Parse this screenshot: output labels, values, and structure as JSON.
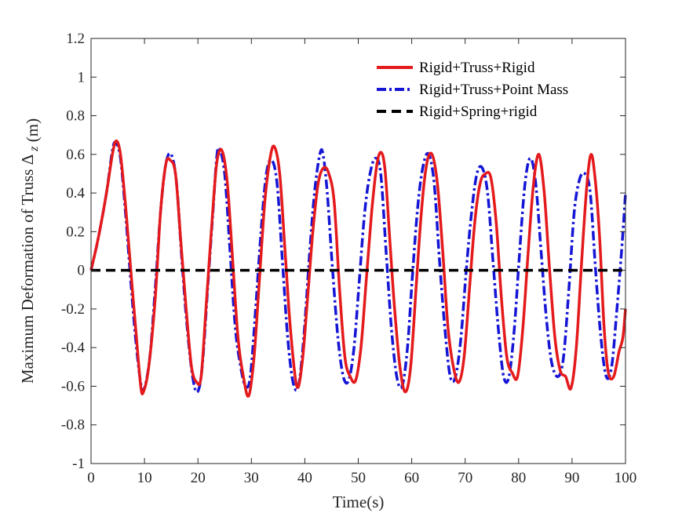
{
  "chart_data": {
    "type": "line",
    "title": "",
    "xlabel": "Time(s)",
    "ylabel": "Maximum Deformation of Truss",
    "ylabel_symbol": "Δ",
    "ylabel_subscript": "z",
    "ylabel_unit": "(m)",
    "xlim": [
      0,
      100
    ],
    "ylim": [
      -1,
      1.2
    ],
    "xticks": [
      0,
      10,
      20,
      30,
      40,
      50,
      60,
      70,
      80,
      90,
      100
    ],
    "yticks": [
      -1,
      -0.8,
      -0.6,
      -0.4,
      -0.2,
      0,
      0.2,
      0.4,
      0.6,
      0.8,
      1,
      1.2
    ],
    "xtick_labels": [
      "0",
      "10",
      "20",
      "30",
      "40",
      "50",
      "60",
      "70",
      "80",
      "90",
      "100"
    ],
    "ytick_labels": [
      "-1",
      "-0.8",
      "-0.6",
      "-0.4",
      "-0.2",
      "0",
      "0.2",
      "0.4",
      "0.6",
      "0.8",
      "1",
      "1.2"
    ],
    "grid": false,
    "legend_position": "top-right",
    "series": [
      {
        "name": "Rigid+Truss+Rigid",
        "color": "#e41a1c",
        "style": "solid",
        "points": [
          [
            0,
            0
          ],
          [
            1,
            0.12
          ],
          [
            2,
            0.26
          ],
          [
            3,
            0.42
          ],
          [
            4,
            0.6
          ],
          [
            4.7,
            0.67
          ],
          [
            5.5,
            0.6
          ],
          [
            6.5,
            0.32
          ],
          [
            7.5,
            -0.02
          ],
          [
            8.5,
            -0.35
          ],
          [
            9.3,
            -0.6
          ],
          [
            9.8,
            -0.63
          ],
          [
            10.8,
            -0.5
          ],
          [
            12,
            -0.15
          ],
          [
            13,
            0.3
          ],
          [
            14,
            0.55
          ],
          [
            14.8,
            0.57
          ],
          [
            15.8,
            0.5
          ],
          [
            16.8,
            0.15
          ],
          [
            17.8,
            -0.2
          ],
          [
            18.8,
            -0.5
          ],
          [
            19.8,
            -0.58
          ],
          [
            20.6,
            -0.55
          ],
          [
            21.5,
            -0.2
          ],
          [
            22.5,
            0.2
          ],
          [
            23.5,
            0.55
          ],
          [
            24.5,
            0.62
          ],
          [
            25.5,
            0.45
          ],
          [
            26.5,
            0.05
          ],
          [
            27.5,
            -0.35
          ],
          [
            28.5,
            -0.55
          ],
          [
            29.5,
            -0.65
          ],
          [
            30.5,
            -0.45
          ],
          [
            31.5,
            -0.05
          ],
          [
            32.5,
            0.35
          ],
          [
            33.5,
            0.58
          ],
          [
            34.3,
            0.64
          ],
          [
            35.3,
            0.5
          ],
          [
            36.3,
            0.1
          ],
          [
            37.3,
            -0.3
          ],
          [
            38.5,
            -0.6
          ],
          [
            39.5,
            -0.48
          ],
          [
            40.5,
            -0.15
          ],
          [
            41.5,
            0.2
          ],
          [
            42.5,
            0.45
          ],
          [
            43.5,
            0.53
          ],
          [
            44.5,
            0.5
          ],
          [
            45.5,
            0.35
          ],
          [
            46.5,
            -0.1
          ],
          [
            47.5,
            -0.45
          ],
          [
            48.5,
            -0.55
          ],
          [
            49.5,
            -0.57
          ],
          [
            50.5,
            -0.4
          ],
          [
            51.5,
            -0.05
          ],
          [
            52.5,
            0.3
          ],
          [
            53.5,
            0.55
          ],
          [
            54.3,
            0.61
          ],
          [
            55,
            0.52
          ],
          [
            55.8,
            0.2
          ],
          [
            56.8,
            -0.2
          ],
          [
            57.8,
            -0.5
          ],
          [
            58.8,
            -0.63
          ],
          [
            59.8,
            -0.5
          ],
          [
            60.8,
            -0.1
          ],
          [
            61.8,
            0.3
          ],
          [
            62.8,
            0.55
          ],
          [
            63.8,
            0.6
          ],
          [
            64.8,
            0.45
          ],
          [
            65.8,
            0.1
          ],
          [
            66.8,
            -0.3
          ],
          [
            67.8,
            -0.5
          ],
          [
            68.8,
            -0.58
          ],
          [
            69.8,
            -0.45
          ],
          [
            70.8,
            -0.1
          ],
          [
            71.8,
            0.25
          ],
          [
            72.8,
            0.45
          ],
          [
            73.8,
            0.5
          ],
          [
            74.8,
            0.48
          ],
          [
            75.8,
            0.25
          ],
          [
            76.8,
            -0.15
          ],
          [
            77.8,
            -0.45
          ],
          [
            78.8,
            -0.53
          ],
          [
            79.8,
            -0.55
          ],
          [
            80.8,
            -0.3
          ],
          [
            81.8,
            0.1
          ],
          [
            82.8,
            0.45
          ],
          [
            83.8,
            0.6
          ],
          [
            84.8,
            0.4
          ],
          [
            85.8,
            0.0
          ],
          [
            86.8,
            -0.35
          ],
          [
            87.8,
            -0.52
          ],
          [
            88.8,
            -0.55
          ],
          [
            89.8,
            -0.61
          ],
          [
            90.8,
            -0.4
          ],
          [
            91.8,
            0.05
          ],
          [
            92.8,
            0.45
          ],
          [
            93.6,
            0.6
          ],
          [
            94.4,
            0.45
          ],
          [
            95.2,
            0.15
          ],
          [
            96,
            -0.3
          ],
          [
            96.8,
            -0.53
          ],
          [
            97.8,
            -0.55
          ],
          [
            98.8,
            -0.42
          ],
          [
            99.5,
            -0.35
          ],
          [
            100,
            -0.2
          ]
        ]
      },
      {
        "name": "Rigid+Truss+Point Mass",
        "color": "#1515d6",
        "style": "dashdot",
        "points": [
          [
            0,
            0
          ],
          [
            1,
            0.12
          ],
          [
            2,
            0.26
          ],
          [
            3,
            0.42
          ],
          [
            4,
            0.62
          ],
          [
            4.6,
            0.66
          ],
          [
            5.5,
            0.58
          ],
          [
            6.5,
            0.28
          ],
          [
            7.5,
            -0.08
          ],
          [
            8.5,
            -0.4
          ],
          [
            9.4,
            -0.6
          ],
          [
            10,
            -0.61
          ],
          [
            11,
            -0.45
          ],
          [
            12,
            -0.1
          ],
          [
            13,
            0.3
          ],
          [
            14,
            0.55
          ],
          [
            15,
            0.6
          ],
          [
            16,
            0.45
          ],
          [
            17,
            0.05
          ],
          [
            18,
            -0.3
          ],
          [
            19,
            -0.55
          ],
          [
            19.9,
            -0.63
          ],
          [
            20.8,
            -0.5
          ],
          [
            21.8,
            -0.1
          ],
          [
            22.8,
            0.3
          ],
          [
            23.5,
            0.58
          ],
          [
            24,
            0.63
          ],
          [
            25,
            0.5
          ],
          [
            26,
            0.1
          ],
          [
            27,
            -0.3
          ],
          [
            28,
            -0.5
          ],
          [
            28.9,
            -0.6
          ],
          [
            29.8,
            -0.55
          ],
          [
            30.8,
            -0.2
          ],
          [
            31.8,
            0.2
          ],
          [
            32.8,
            0.5
          ],
          [
            33.8,
            0.57
          ],
          [
            34.8,
            0.45
          ],
          [
            35.8,
            0.05
          ],
          [
            36.8,
            -0.35
          ],
          [
            37.8,
            -0.58
          ],
          [
            38.8,
            -0.6
          ],
          [
            39.8,
            -0.35
          ],
          [
            40.8,
            0.05
          ],
          [
            41.8,
            0.4
          ],
          [
            42.8,
            0.6
          ],
          [
            43.4,
            0.6
          ],
          [
            44.2,
            0.4
          ],
          [
            45.2,
            0.0
          ],
          [
            46.2,
            -0.35
          ],
          [
            47.2,
            -0.55
          ],
          [
            48.2,
            -0.57
          ],
          [
            49.2,
            -0.4
          ],
          [
            50.2,
            -0.05
          ],
          [
            51.2,
            0.3
          ],
          [
            52.2,
            0.5
          ],
          [
            53.2,
            0.58
          ],
          [
            54.2,
            0.5
          ],
          [
            55.2,
            0.1
          ],
          [
            56.2,
            -0.3
          ],
          [
            57.2,
            -0.55
          ],
          [
            58.2,
            -0.6
          ],
          [
            59.2,
            -0.4
          ],
          [
            60.2,
            0.0
          ],
          [
            61.2,
            0.35
          ],
          [
            62.2,
            0.55
          ],
          [
            63.2,
            0.6
          ],
          [
            64.2,
            0.45
          ],
          [
            65.2,
            0.05
          ],
          [
            66.2,
            -0.3
          ],
          [
            67.2,
            -0.55
          ],
          [
            68.2,
            -0.55
          ],
          [
            69.2,
            -0.35
          ],
          [
            70.2,
            0.0
          ],
          [
            71.2,
            0.3
          ],
          [
            72.2,
            0.5
          ],
          [
            73.2,
            0.53
          ],
          [
            74.2,
            0.4
          ],
          [
            75.2,
            0.05
          ],
          [
            76.2,
            -0.3
          ],
          [
            77.2,
            -0.55
          ],
          [
            78.2,
            -0.55
          ],
          [
            79.2,
            -0.3
          ],
          [
            80.2,
            0.1
          ],
          [
            81.2,
            0.45
          ],
          [
            82.2,
            0.58
          ],
          [
            83.2,
            0.45
          ],
          [
            84.2,
            0.1
          ],
          [
            85.2,
            -0.25
          ],
          [
            86.2,
            -0.48
          ],
          [
            87.4,
            -0.55
          ],
          [
            88.4,
            -0.45
          ],
          [
            89.4,
            -0.1
          ],
          [
            90.4,
            0.3
          ],
          [
            91.4,
            0.47
          ],
          [
            92.4,
            0.5
          ],
          [
            93.4,
            0.4
          ],
          [
            94.4,
            0.0
          ],
          [
            95.4,
            -0.35
          ],
          [
            96.4,
            -0.55
          ],
          [
            97.4,
            -0.5
          ],
          [
            98.4,
            -0.2
          ],
          [
            99.4,
            0.15
          ],
          [
            100,
            0.4
          ]
        ]
      },
      {
        "name": "Rigid+Spring+rigid",
        "color": "#000000",
        "style": "dashed",
        "points": [
          [
            0,
            0
          ],
          [
            100,
            0
          ]
        ]
      }
    ]
  }
}
